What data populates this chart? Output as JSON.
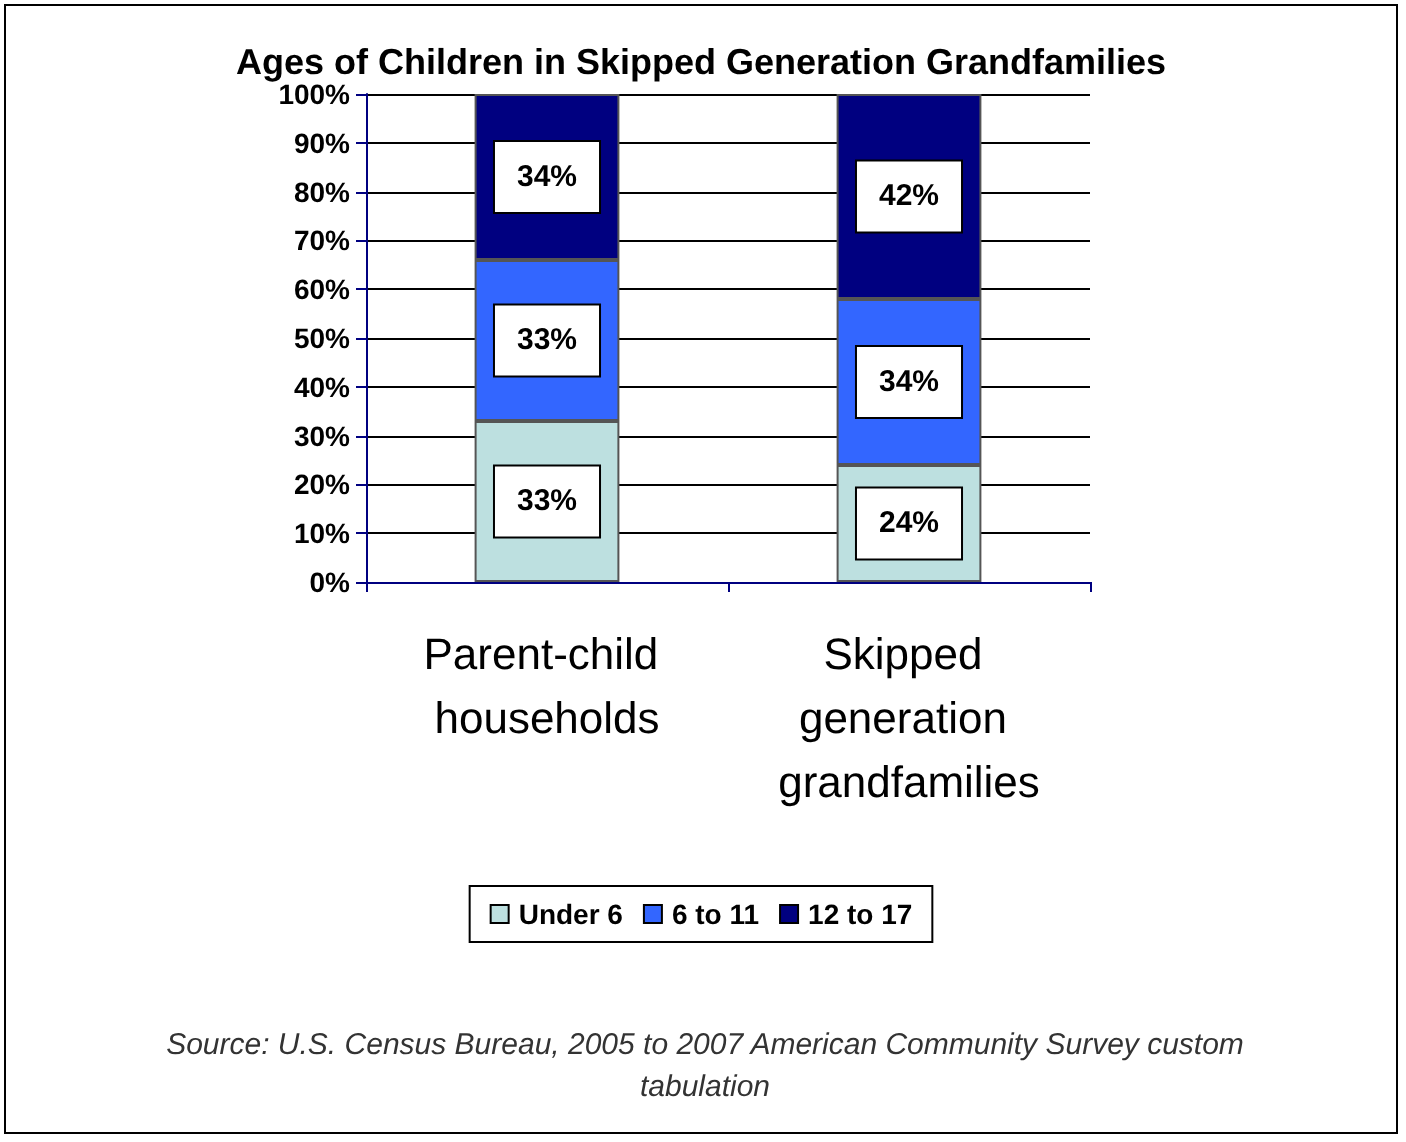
{
  "chart_data": {
    "type": "bar",
    "stacked": true,
    "title": "Ages of Children in Skipped Generation Grandfamilies",
    "categories": [
      "Parent-child households",
      "Skipped generation grandfamilies"
    ],
    "series": [
      {
        "name": "Under 6",
        "color": "#bde0e0",
        "values": [
          33,
          24
        ],
        "value_labels": [
          "33%",
          "24%"
        ]
      },
      {
        "name": "6 to 11",
        "color": "#3366ff",
        "values": [
          33,
          34
        ],
        "value_labels": [
          "33%",
          "34%"
        ]
      },
      {
        "name": "12 to 17",
        "color": "#000080",
        "values": [
          34,
          42
        ],
        "value_labels": [
          "34%",
          "42%"
        ]
      }
    ],
    "ylim": [
      0,
      100
    ],
    "yticks": [
      {
        "value": 0,
        "label": "0%"
      },
      {
        "value": 10,
        "label": "10%"
      },
      {
        "value": 20,
        "label": "20%"
      },
      {
        "value": 30,
        "label": "30%"
      },
      {
        "value": 40,
        "label": "40%"
      },
      {
        "value": 50,
        "label": "50%"
      },
      {
        "value": 60,
        "label": "60%"
      },
      {
        "value": 70,
        "label": "70%"
      },
      {
        "value": 80,
        "label": "80%"
      },
      {
        "value": 90,
        "label": "90%"
      },
      {
        "value": 100,
        "label": "100%"
      }
    ],
    "grid": "y",
    "legend": "bottom",
    "annotations": [
      "Source:  U.S. Census Bureau, 2005 to 2007 American Community Survey custom tabulation"
    ]
  }
}
